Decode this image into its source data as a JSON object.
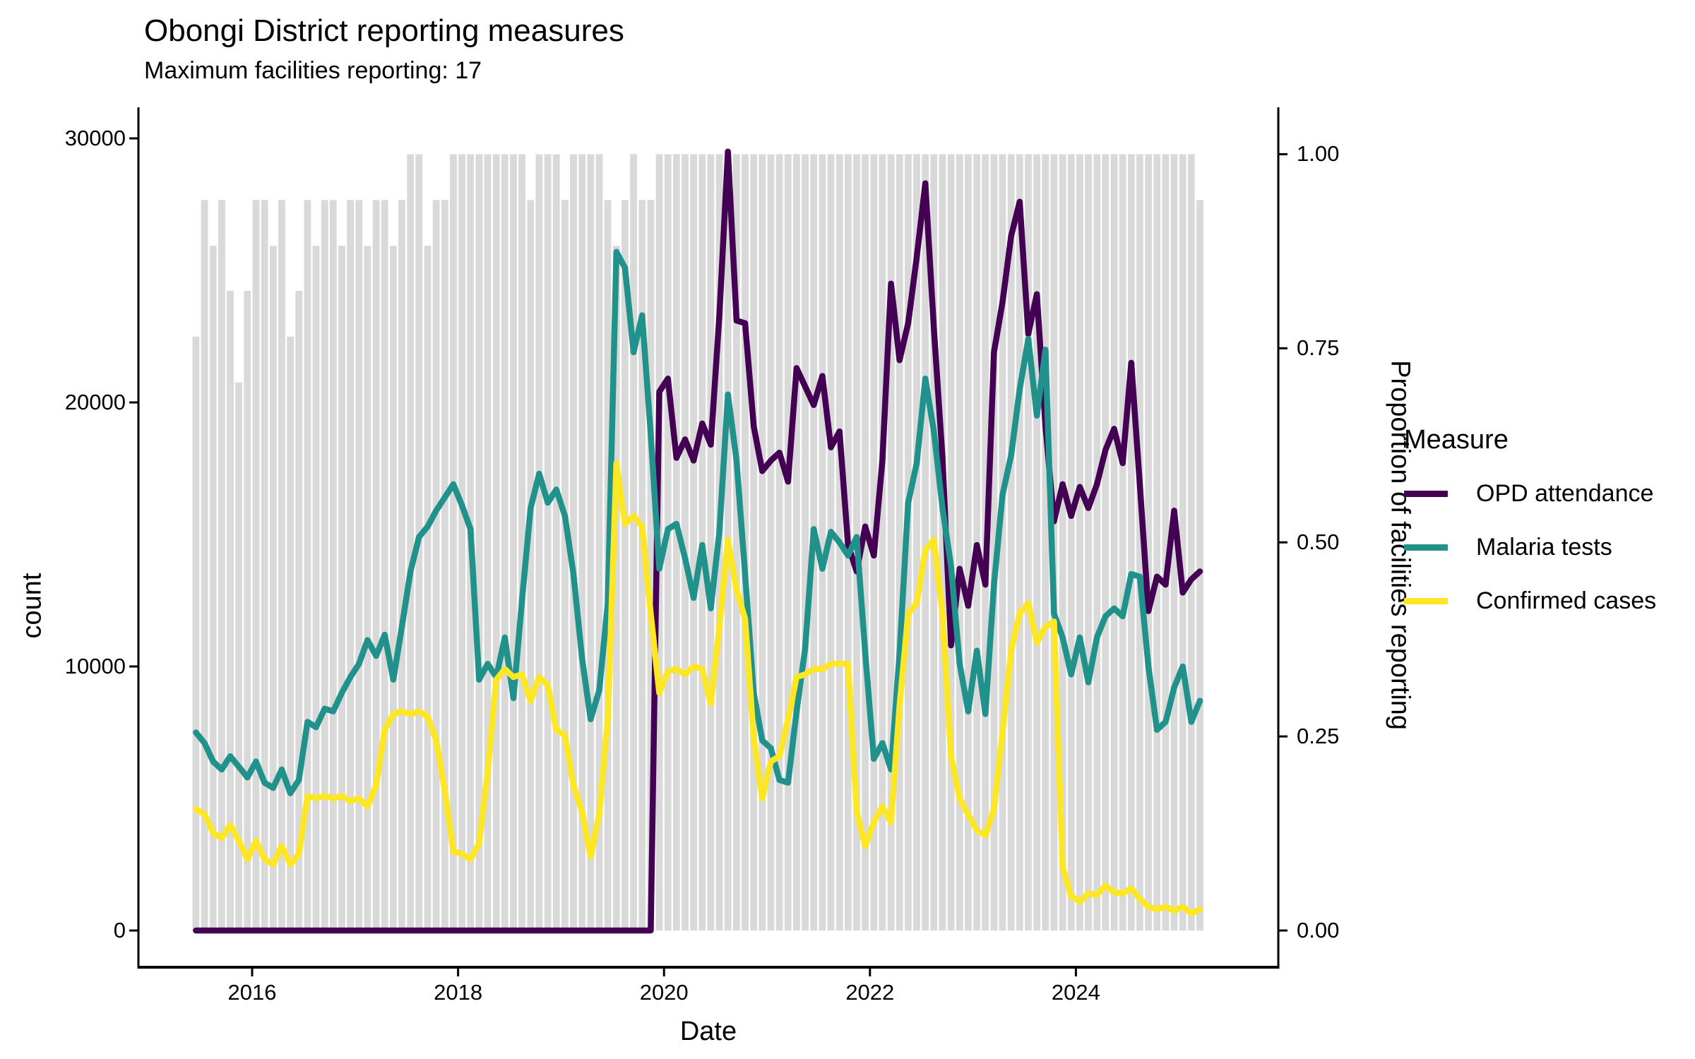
{
  "title": "Obongi District reporting measures",
  "subtitle": "Maximum facilities reporting: 17",
  "axes": {
    "x": {
      "label": "Date",
      "ticks": [
        "2016",
        "2018",
        "2020",
        "2022",
        "2024"
      ]
    },
    "y_left": {
      "label": "count",
      "ticks": [
        "30000",
        "20000",
        "10000",
        "0"
      ]
    },
    "y_right": {
      "label": "Proportion of facilities reporting",
      "ticks": [
        "1.00",
        "0.75",
        "0.50",
        "0.25",
        "0.00"
      ]
    }
  },
  "legend": {
    "title": "Measure",
    "items": [
      {
        "label": "OPD attendance",
        "color": "#440154"
      },
      {
        "label": "Malaria tests",
        "color": "#21918C"
      },
      {
        "label": "Confirmed cases",
        "color": "#FDE725"
      }
    ]
  },
  "colors": {
    "opd": "#440154",
    "malaria": "#21918C",
    "confirmed": "#FDE725",
    "bars": "#D9D9D9",
    "axis": "#000000"
  },
  "chart_data": {
    "type": "line",
    "title": "Obongi District reporting measures",
    "subtitle": "Maximum facilities reporting: 17",
    "xlabel": "Date",
    "ylabel_left": "count",
    "ylabel_right": "Proportion of facilities reporting",
    "ylim_left": [
      0,
      30000
    ],
    "ylim_right": [
      0,
      1
    ],
    "right_axis_count_equivalent": 29400,
    "max_facilities": 17,
    "x_tick_years": [
      2016,
      2018,
      2020,
      2022,
      2024
    ],
    "grid": false,
    "legend_position": "right",
    "months": [
      "2015-06",
      "2015-07",
      "2015-08",
      "2015-09",
      "2015-10",
      "2015-11",
      "2015-12",
      "2016-01",
      "2016-02",
      "2016-03",
      "2016-04",
      "2016-05",
      "2016-06",
      "2016-07",
      "2016-08",
      "2016-09",
      "2016-10",
      "2016-11",
      "2016-12",
      "2017-01",
      "2017-02",
      "2017-03",
      "2017-04",
      "2017-05",
      "2017-06",
      "2017-07",
      "2017-08",
      "2017-09",
      "2017-10",
      "2017-11",
      "2017-12",
      "2018-01",
      "2018-02",
      "2018-03",
      "2018-04",
      "2018-05",
      "2018-06",
      "2018-07",
      "2018-08",
      "2018-09",
      "2018-10",
      "2018-11",
      "2018-12",
      "2019-01",
      "2019-02",
      "2019-03",
      "2019-04",
      "2019-05",
      "2019-06",
      "2019-07",
      "2019-08",
      "2019-09",
      "2019-10",
      "2019-11",
      "2019-12",
      "2020-01",
      "2020-02",
      "2020-03",
      "2020-04",
      "2020-05",
      "2020-06",
      "2020-07",
      "2020-08",
      "2020-09",
      "2020-10",
      "2020-11",
      "2020-12",
      "2021-01",
      "2021-02",
      "2021-03",
      "2021-04",
      "2021-05",
      "2021-06",
      "2021-07",
      "2021-08",
      "2021-09",
      "2021-10",
      "2021-11",
      "2021-12",
      "2022-01",
      "2022-02",
      "2022-03",
      "2022-04",
      "2022-05",
      "2022-06",
      "2022-07",
      "2022-08",
      "2022-09",
      "2022-10",
      "2022-11",
      "2022-12",
      "2023-01",
      "2023-02",
      "2023-03",
      "2023-04",
      "2023-05",
      "2023-06",
      "2023-07",
      "2023-08",
      "2023-09",
      "2023-10",
      "2023-11",
      "2023-12",
      "2024-01",
      "2024-02",
      "2024-03",
      "2024-04",
      "2024-05",
      "2024-06",
      "2024-07",
      "2024-08",
      "2024-09",
      "2024-10",
      "2024-11",
      "2024-12",
      "2025-01",
      "2025-02",
      "2025-03"
    ],
    "series": [
      {
        "name": "OPD attendance",
        "color": "#440154",
        "axis": "left",
        "values": [
          0,
          0,
          0,
          0,
          0,
          0,
          0,
          0,
          0,
          0,
          0,
          0,
          0,
          0,
          0,
          0,
          0,
          0,
          0,
          0,
          0,
          0,
          0,
          0,
          0,
          0,
          0,
          0,
          0,
          0,
          0,
          0,
          0,
          0,
          0,
          0,
          0,
          0,
          0,
          0,
          0,
          0,
          0,
          0,
          0,
          0,
          0,
          0,
          0,
          0,
          0,
          0,
          0,
          0,
          20400,
          20900,
          17900,
          18600,
          17800,
          19200,
          18400,
          23300,
          29500,
          23100,
          23000,
          19100,
          17400,
          17800,
          18100,
          17000,
          21300,
          20600,
          19900,
          21000,
          18300,
          18900,
          14600,
          13600,
          15300,
          14200,
          17800,
          24500,
          21600,
          23000,
          25500,
          28300,
          22800,
          17900,
          10800,
          13700,
          12300,
          14600,
          13100,
          21900,
          23800,
          26300,
          27600,
          22600,
          24100,
          19100,
          15500,
          16900,
          15700,
          16800,
          16000,
          16900,
          18200,
          19000,
          17700,
          21500,
          16900,
          12100,
          13400,
          13100,
          15900,
          12800,
          13300,
          13600
        ]
      },
      {
        "name": "Malaria tests",
        "color": "#21918C",
        "axis": "left",
        "values": [
          7500,
          7100,
          6400,
          6100,
          6600,
          6200,
          5800,
          6400,
          5600,
          5400,
          6100,
          5200,
          5700,
          7900,
          7700,
          8400,
          8300,
          9000,
          9600,
          10100,
          11000,
          10400,
          11200,
          9500,
          11500,
          13600,
          14900,
          15300,
          15900,
          16400,
          16900,
          16100,
          15200,
          9500,
          10100,
          9600,
          11100,
          8800,
          12500,
          16000,
          17300,
          16200,
          16700,
          15700,
          13500,
          10300,
          8000,
          9100,
          12400,
          25700,
          25100,
          21900,
          23300,
          18800,
          13700,
          15200,
          15400,
          14100,
          12600,
          14600,
          12200,
          15100,
          20300,
          17800,
          13500,
          9000,
          7200,
          6900,
          5700,
          5600,
          8300,
          10700,
          15200,
          13700,
          15100,
          14700,
          14200,
          14900,
          10500,
          6500,
          7100,
          6100,
          10500,
          16200,
          17700,
          20900,
          18900,
          16000,
          13800,
          10100,
          8300,
          10600,
          8200,
          13100,
          16500,
          18000,
          20500,
          22400,
          19500,
          22000,
          12000,
          11100,
          9700,
          11100,
          9400,
          11100,
          11900,
          12200,
          11900,
          13500,
          13400,
          10000,
          7600,
          7900,
          9200,
          10000,
          7900,
          8700
        ]
      },
      {
        "name": "Confirmed cases",
        "color": "#FDE725",
        "axis": "left",
        "values": [
          4600,
          4400,
          3700,
          3500,
          4000,
          3400,
          2700,
          3400,
          2700,
          2500,
          3200,
          2500,
          2900,
          5100,
          5000,
          5100,
          5000,
          5100,
          4900,
          5000,
          4700,
          5500,
          7600,
          8200,
          8300,
          8200,
          8300,
          8100,
          7200,
          5300,
          3000,
          2900,
          2700,
          3300,
          6000,
          9500,
          9900,
          9600,
          9700,
          8700,
          9600,
          9300,
          7600,
          7400,
          5500,
          4500,
          2800,
          4400,
          8000,
          17700,
          15400,
          15700,
          15300,
          12000,
          9000,
          9800,
          9900,
          9700,
          10000,
          9900,
          8600,
          11500,
          14800,
          12900,
          11800,
          7300,
          5000,
          6400,
          6600,
          8000,
          9600,
          9700,
          9900,
          9900,
          10100,
          10100,
          10100,
          4500,
          3200,
          4100,
          4700,
          4100,
          8500,
          12000,
          12400,
          14400,
          14800,
          12000,
          6600,
          5000,
          4400,
          3800,
          3600,
          4600,
          7500,
          10600,
          12000,
          12400,
          10900,
          11500,
          11700,
          2400,
          1300,
          1100,
          1400,
          1350,
          1700,
          1450,
          1400,
          1600,
          1200,
          900,
          800,
          900,
          750,
          900,
          650,
          800
        ]
      }
    ],
    "bars": {
      "name": "Proportion of facilities reporting",
      "color": "#D9D9D9",
      "axis": "right",
      "values": [
        0.765,
        0.941,
        0.882,
        0.941,
        0.824,
        0.706,
        0.824,
        0.941,
        0.941,
        0.882,
        0.941,
        0.765,
        0.824,
        0.941,
        0.882,
        0.941,
        0.941,
        0.882,
        0.941,
        0.941,
        0.882,
        0.941,
        0.941,
        0.882,
        0.941,
        1,
        1,
        0.882,
        0.941,
        0.941,
        1,
        1,
        1,
        1,
        1,
        1,
        1,
        1,
        1,
        0.941,
        1,
        1,
        1,
        0.941,
        1,
        1,
        1,
        1,
        0.941,
        0.882,
        0.941,
        1,
        0.941,
        0.941,
        1,
        1,
        1,
        1,
        1,
        1,
        1,
        1,
        1,
        1,
        1,
        1,
        1,
        1,
        1,
        1,
        1,
        1,
        1,
        1,
        1,
        1,
        1,
        1,
        1,
        1,
        1,
        1,
        1,
        1,
        1,
        1,
        1,
        1,
        1,
        1,
        1,
        1,
        1,
        1,
        1,
        1,
        1,
        1,
        1,
        1,
        1,
        1,
        1,
        1,
        1,
        1,
        1,
        1,
        1,
        1,
        1,
        1,
        1,
        1,
        1,
        1,
        1,
        0.941
      ]
    }
  }
}
